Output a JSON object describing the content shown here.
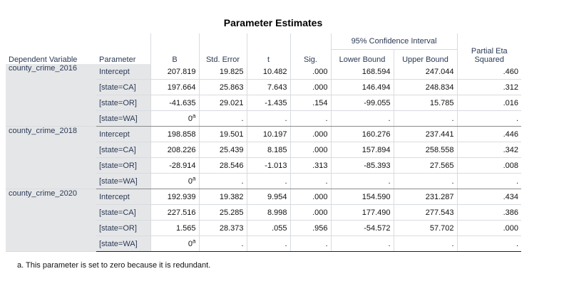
{
  "title": "Parameter Estimates",
  "headers": {
    "dependent_variable": "Dependent Variable",
    "parameter": "Parameter",
    "b": "B",
    "std_error": "Std. Error",
    "t": "t",
    "sig": "Sig.",
    "ci_group": "95% Confidence Interval",
    "lower": "Lower Bound",
    "upper": "Upper Bound",
    "eta_line1": "Partial Eta",
    "eta_line2": "Squared"
  },
  "redundant_value": "0",
  "redundant_mark": "a",
  "groups": [
    {
      "dv": "county_crime_2016",
      "rows": [
        {
          "param": "Intercept",
          "b": "207.819",
          "se": "19.825",
          "t": "10.482",
          "sig": ".000",
          "lo": "168.594",
          "hi": "247.044",
          "eta": ".460"
        },
        {
          "param": "[state=CA]",
          "b": "197.664",
          "se": "25.863",
          "t": "7.643",
          "sig": ".000",
          "lo": "146.494",
          "hi": "248.834",
          "eta": ".312"
        },
        {
          "param": "[state=OR]",
          "b": "-41.635",
          "se": "29.021",
          "t": "-1.435",
          "sig": ".154",
          "lo": "-99.055",
          "hi": "15.785",
          "eta": ".016"
        },
        {
          "param": "[state=WA]",
          "redundant": true,
          "se": ".",
          "t": ".",
          "sig": ".",
          "lo": ".",
          "hi": ".",
          "eta": "."
        }
      ]
    },
    {
      "dv": "county_crime_2018",
      "rows": [
        {
          "param": "Intercept",
          "b": "198.858",
          "se": "19.501",
          "t": "10.197",
          "sig": ".000",
          "lo": "160.276",
          "hi": "237.441",
          "eta": ".446"
        },
        {
          "param": "[state=CA]",
          "b": "208.226",
          "se": "25.439",
          "t": "8.185",
          "sig": ".000",
          "lo": "157.894",
          "hi": "258.558",
          "eta": ".342"
        },
        {
          "param": "[state=OR]",
          "b": "-28.914",
          "se": "28.546",
          "t": "-1.013",
          "sig": ".313",
          "lo": "-85.393",
          "hi": "27.565",
          "eta": ".008"
        },
        {
          "param": "[state=WA]",
          "redundant": true,
          "se": ".",
          "t": ".",
          "sig": ".",
          "lo": ".",
          "hi": ".",
          "eta": "."
        }
      ]
    },
    {
      "dv": "county_crime_2020",
      "rows": [
        {
          "param": "Intercept",
          "b": "192.939",
          "se": "19.382",
          "t": "9.954",
          "sig": ".000",
          "lo": "154.590",
          "hi": "231.287",
          "eta": ".434"
        },
        {
          "param": "[state=CA]",
          "b": "227.516",
          "se": "25.285",
          "t": "8.998",
          "sig": ".000",
          "lo": "177.490",
          "hi": "277.543",
          "eta": ".386"
        },
        {
          "param": "[state=OR]",
          "b": "1.565",
          "se": "28.373",
          "t": ".055",
          "sig": ".956",
          "lo": "-54.572",
          "hi": "57.702",
          "eta": ".000"
        },
        {
          "param": "[state=WA]",
          "redundant": true,
          "se": ".",
          "t": ".",
          "sig": ".",
          "lo": ".",
          "hi": ".",
          "eta": "."
        }
      ]
    }
  ],
  "footnote": "a. This parameter is set to zero because it is redundant."
}
